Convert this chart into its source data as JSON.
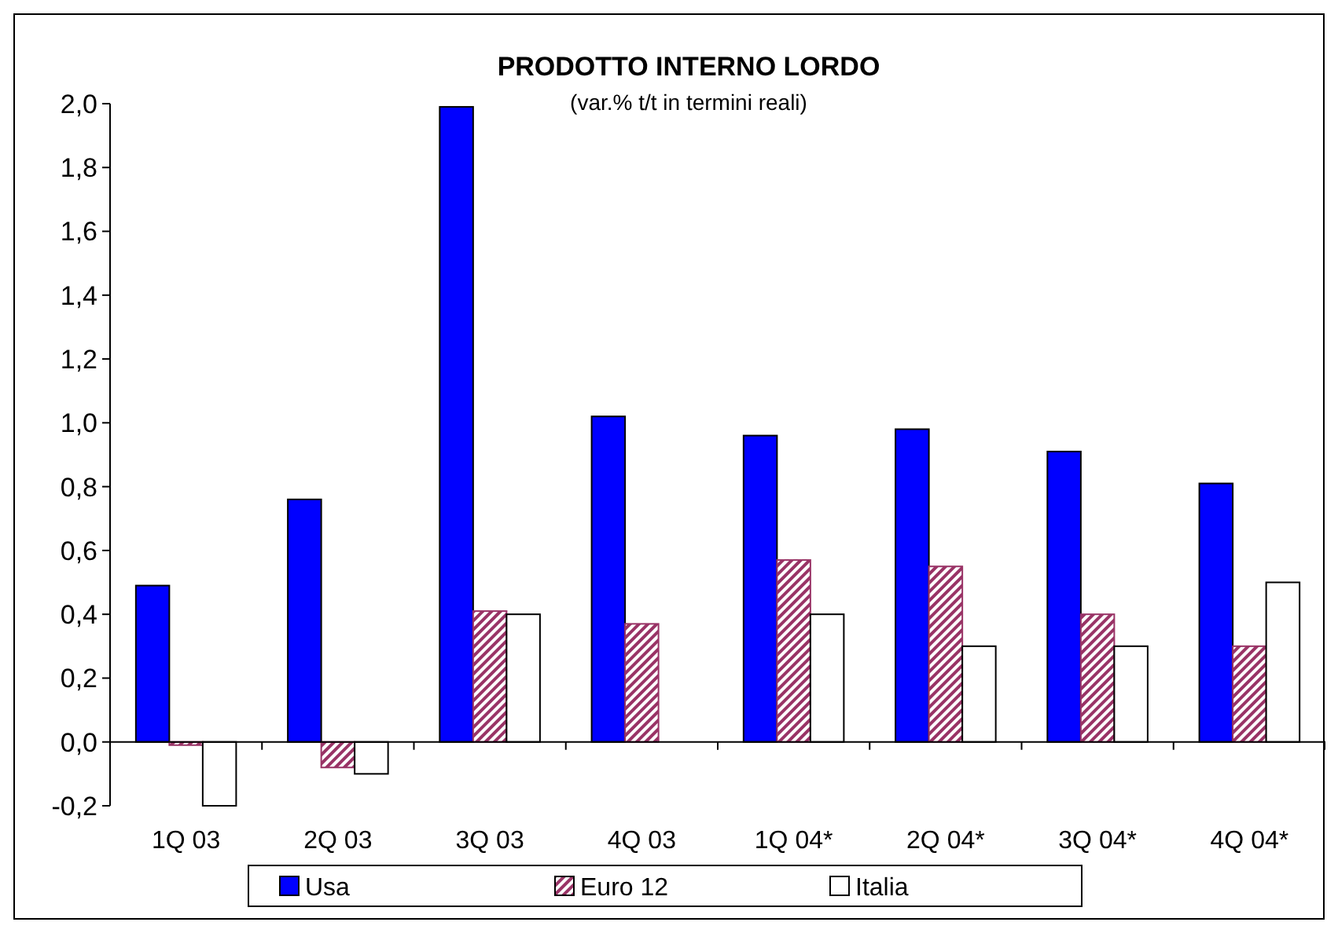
{
  "chart_data": {
    "type": "bar",
    "title": "PRODOTTO INTERNO LORDO",
    "subtitle": "(var.% t/t in termini reali)",
    "categories": [
      "1Q 03",
      "2Q 03",
      "3Q 03",
      "4Q 03",
      "1Q 04*",
      "2Q 04*",
      "3Q 04*",
      "4Q 04*"
    ],
    "series": [
      {
        "name": "Usa",
        "color": "#0000ff",
        "values": [
          0.49,
          0.76,
          1.99,
          1.02,
          0.96,
          0.98,
          0.91,
          0.81
        ]
      },
      {
        "name": "Euro 12",
        "color": "#993366",
        "values": [
          -0.01,
          -0.08,
          0.41,
          0.37,
          0.57,
          0.55,
          0.4,
          0.3
        ]
      },
      {
        "name": "Italia",
        "color": "#ffffff",
        "values": [
          -0.2,
          -0.1,
          0.4,
          null,
          0.4,
          0.3,
          0.3,
          0.5
        ]
      }
    ],
    "ylim": [
      -0.2,
      2.0
    ],
    "yticks": [
      {
        "value": -0.2,
        "label": "-0,2"
      },
      {
        "value": 0,
        "label": "0,0"
      },
      {
        "value": 0.2,
        "label": "0,2"
      },
      {
        "value": 0.4,
        "label": "0,4"
      },
      {
        "value": 0.6,
        "label": "0,6"
      },
      {
        "value": 0.8,
        "label": "0,8"
      },
      {
        "value": 1.0,
        "label": "1,0"
      },
      {
        "value": 1.2,
        "label": "1,2"
      },
      {
        "value": 1.4,
        "label": "1,4"
      },
      {
        "value": 1.6,
        "label": "1,6"
      },
      {
        "value": 1.8,
        "label": "1,8"
      },
      {
        "value": 2.0,
        "label": "2,0"
      }
    ],
    "legend": "bottom"
  }
}
